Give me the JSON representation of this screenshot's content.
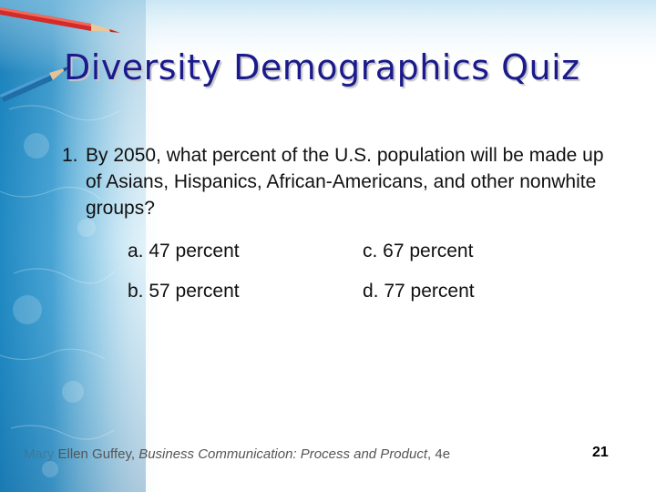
{
  "slide": {
    "title": "Diversity Demographics Quiz",
    "question": {
      "number": "1.",
      "text": "By 2050, what percent of the U.S. population will be made up of Asians, Hispanics, African-Americans, and other nonwhite groups?"
    },
    "options": [
      {
        "label": "a. 47 percent"
      },
      {
        "label": "b. 57 percent"
      },
      {
        "label": "c. 67 percent"
      },
      {
        "label": "d. 77 percent"
      }
    ],
    "footer": {
      "source_prefix": "Mary",
      "source_author": "Ellen Guffey, ",
      "book_title": "Business Communication: Process and Product",
      "edition": ", 4e"
    },
    "page_number": "21"
  },
  "colors": {
    "title": "#1a1a8c",
    "background_accent": "#1e7fb8",
    "pencil_red": "#d42a2a",
    "pencil_blue": "#1f6ea8"
  },
  "icons": [
    "red-pencil-icon",
    "blue-pencil-icon"
  ]
}
